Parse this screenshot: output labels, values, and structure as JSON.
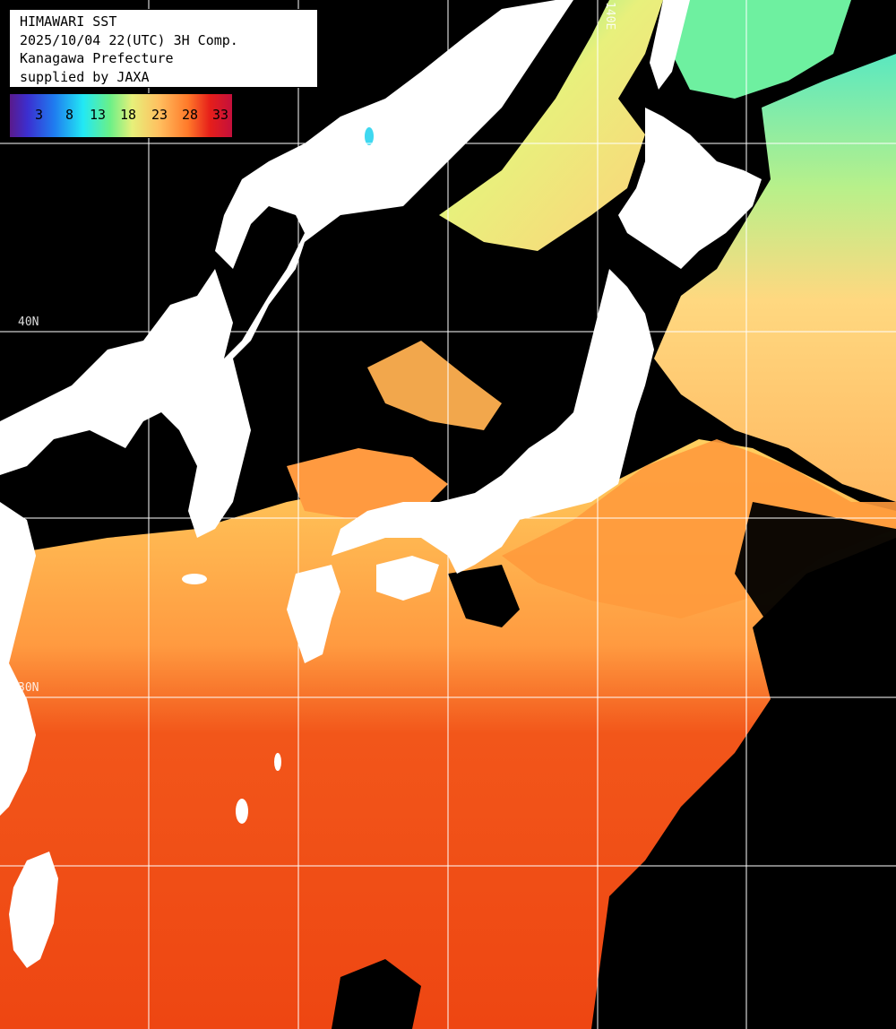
{
  "info": {
    "line1": "HIMAWARI SST",
    "line2": "2025/10/04 22(UTC) 3H Comp.",
    "line3": "Kanagawa Prefecture",
    "line4": "supplied by JAXA"
  },
  "color_scale": {
    "ticks": [
      "3",
      "8",
      "13",
      "18",
      "23",
      "28",
      "33"
    ]
  },
  "grid_labels": {
    "lon": "140E",
    "lat1": "40N",
    "lat2": "30N"
  },
  "colors": {
    "land": "#ffffff",
    "cloud": "#000000",
    "warm_sea": "#f04a12",
    "mid_sea": "#ff8c3a",
    "cool_sea": "#f0e27a",
    "cold_sea": "#6fe89a",
    "grid": "#ffffff"
  }
}
